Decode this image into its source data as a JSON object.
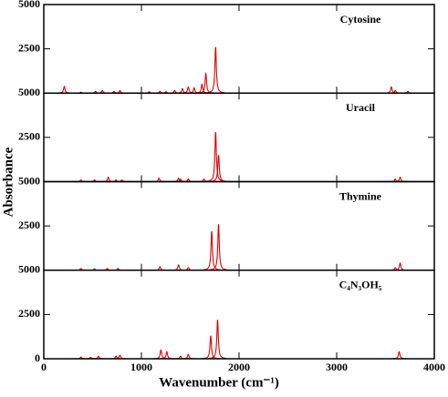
{
  "chart_data": {
    "type": "line",
    "x_label": "Wavenumber (cm⁻¹)",
    "y_label": "Absorbance",
    "xlim": [
      0,
      4000
    ],
    "xticks": [
      0,
      1000,
      2000,
      3000,
      4000
    ],
    "panels": [
      {
        "title": "Cytosine",
        "color": "#e00000",
        "ylim": [
          0,
          5000
        ],
        "yticks": [
          2500,
          5000
        ],
        "x": [
          210,
          380,
          530,
          600,
          720,
          780,
          1080,
          1190,
          1250,
          1340,
          1420,
          1480,
          1540,
          1620,
          1660,
          1760,
          3560,
          3600,
          3730
        ],
        "values": [
          380,
          50,
          100,
          150,
          100,
          150,
          80,
          100,
          80,
          150,
          250,
          350,
          300,
          500,
          1100,
          2600,
          350,
          150,
          100
        ]
      },
      {
        "title": "Uracil",
        "color": "#e00000",
        "ylim": [
          0,
          5000
        ],
        "yticks": [
          2500,
          5000
        ],
        "x": [
          380,
          520,
          660,
          740,
          800,
          1180,
          1380,
          1400,
          1480,
          1640,
          1760,
          1790,
          3600,
          3650
        ],
        "values": [
          100,
          100,
          250,
          100,
          100,
          200,
          200,
          150,
          150,
          150,
          2800,
          1500,
          150,
          250
        ]
      },
      {
        "title": "Thymine",
        "color": "#e00000",
        "ylim": [
          0,
          5000
        ],
        "yticks": [
          2500,
          5000
        ],
        "x": [
          380,
          520,
          650,
          760,
          1190,
          1380,
          1480,
          1720,
          1790,
          3600,
          3650
        ],
        "values": [
          100,
          80,
          100,
          100,
          200,
          300,
          150,
          2200,
          2600,
          150,
          400
        ]
      },
      {
        "title": "C₄N₃OH₅",
        "color": "#e00000",
        "ylim": [
          0,
          5000
        ],
        "yticks": [
          0,
          2500,
          5000
        ],
        "x": [
          380,
          480,
          560,
          740,
          780,
          1200,
          1260,
          1400,
          1480,
          1710,
          1780,
          3640
        ],
        "values": [
          100,
          80,
          150,
          150,
          200,
          500,
          400,
          150,
          250,
          1300,
          2200,
          400
        ]
      }
    ]
  }
}
